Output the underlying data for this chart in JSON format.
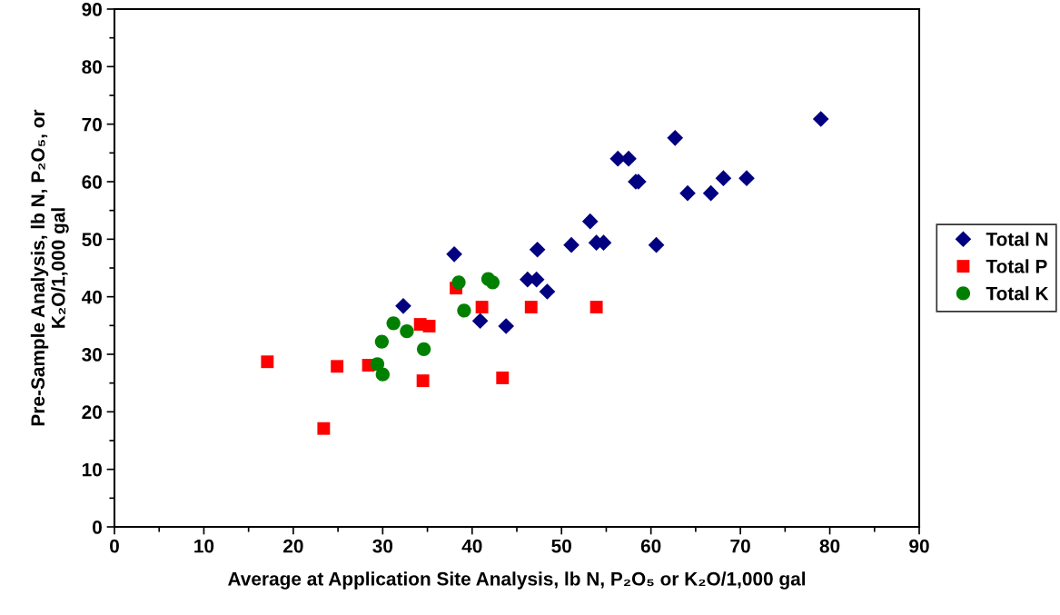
{
  "chart_data": {
    "type": "scatter",
    "xlabel": "Average at Application Site Analysis, lb N, P₂O₅ or K₂O/1,000 gal",
    "ylabel": "Pre-Sample Analysis, lb N, P₂O₅, or\nK₂O/1,000 gal",
    "xlim": [
      0,
      90
    ],
    "xticks": [
      0,
      10,
      20,
      30,
      40,
      50,
      60,
      70,
      80,
      90
    ],
    "ylim": [
      0,
      90
    ],
    "yticks": [
      0,
      10,
      20,
      30,
      40,
      50,
      60,
      70,
      80,
      90
    ],
    "grid": false,
    "legend": "right",
    "series": [
      {
        "name": "Total N",
        "color": "#000080",
        "marker": "diamond",
        "x": [
          79.0,
          62.7,
          56.3,
          57.5,
          58.3,
          58.6,
          64.1,
          66.7,
          68.1,
          70.7,
          53.2,
          47.3,
          51.1,
          53.9,
          54.7,
          60.6,
          38.0,
          46.2,
          47.2,
          48.4,
          32.3,
          40.9,
          43.8
        ],
        "values": [
          70.9,
          67.6,
          64.0,
          64.0,
          60.0,
          60.0,
          58.0,
          58.0,
          60.6,
          60.6,
          53.1,
          48.2,
          49.0,
          49.4,
          49.4,
          49.0,
          47.4,
          43.0,
          43.0,
          40.9,
          38.4,
          35.8,
          34.9
        ]
      },
      {
        "name": "Total P",
        "color": "#ff0000",
        "marker": "square",
        "x": [
          38.2,
          41.1,
          46.6,
          53.9,
          34.2,
          35.2,
          17.1,
          24.9,
          28.4,
          34.5,
          43.4,
          23.4
        ],
        "values": [
          41.5,
          38.2,
          38.2,
          38.2,
          35.2,
          34.9,
          28.7,
          27.9,
          28.1,
          25.4,
          25.9,
          17.1
        ]
      },
      {
        "name": "Total K",
        "color": "#008000",
        "marker": "circle",
        "x": [
          38.5,
          41.8,
          42.3,
          39.1,
          31.2,
          32.7,
          29.9,
          34.6,
          29.4,
          30.0
        ],
        "values": [
          42.5,
          43.1,
          42.5,
          37.6,
          35.4,
          34.0,
          32.2,
          30.9,
          28.3,
          26.5
        ]
      }
    ]
  }
}
